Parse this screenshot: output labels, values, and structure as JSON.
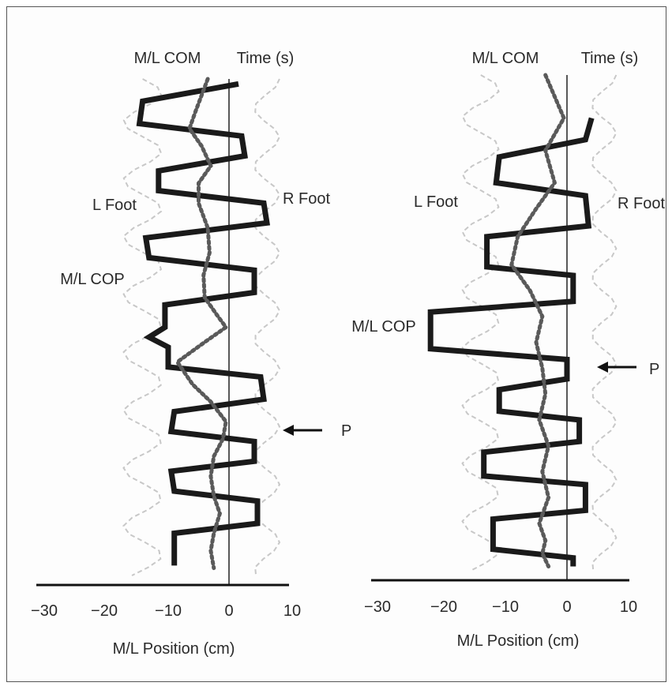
{
  "chart_data": [
    {
      "type": "line",
      "panel": "left",
      "title": "",
      "xlabel": "M/L Position (cm)",
      "ylabel": "Time (s)",
      "xlim": [
        -30,
        12
      ],
      "xticks": [
        "-30",
        "-20",
        "-10",
        "0",
        "10"
      ],
      "grid": false,
      "annotations": {
        "com": "M/L COM",
        "time": "Time (s)",
        "lfoot": "L Foot",
        "rfoot": "R Foot",
        "cop": "M/L COP",
        "p": "P"
      },
      "series": [
        {
          "name": "M/L COP",
          "style": "thick-solid",
          "x": [
            1.5,
            -14,
            -14.5,
            2,
            2.5,
            -11.5,
            -11.5,
            5.5,
            6,
            -13.5,
            -13,
            4,
            4,
            -10.5,
            -10.5,
            -13,
            -10,
            -10,
            5,
            5.5,
            -9,
            -9.5,
            4,
            4,
            -9.5,
            -9,
            4.5,
            4.5,
            -9,
            -9
          ],
          "t": [
            0.02,
            0.09,
            0.18,
            0.23,
            0.31,
            0.37,
            0.45,
            0.5,
            0.58,
            0.64,
            0.72,
            0.77,
            0.86,
            0.91,
            1.0,
            1.04,
            1.08,
            1.16,
            1.2,
            1.29,
            1.34,
            1.42,
            1.46,
            1.54,
            1.58,
            1.66,
            1.7,
            1.79,
            1.83,
            1.96
          ]
        },
        {
          "name": "M/L COM",
          "style": "dotted",
          "x": [
            -3.5,
            -5.5,
            -6.5,
            -4.5,
            -3,
            -5,
            -5,
            -3.5,
            -3.2,
            -4.2,
            -4,
            -2,
            -0.5,
            -4,
            -8.5,
            -6,
            -3,
            -0.5,
            -1,
            -2.5,
            -3,
            -2.5,
            -1.5,
            -2.5,
            -3,
            -2.5
          ],
          "t": [
            0.0,
            0.13,
            0.2,
            0.27,
            0.35,
            0.42,
            0.5,
            0.6,
            0.7,
            0.79,
            0.88,
            0.95,
            1.0,
            1.06,
            1.14,
            1.23,
            1.3,
            1.38,
            1.45,
            1.52,
            1.6,
            1.68,
            1.75,
            1.83,
            1.9,
            1.97
          ]
        }
      ]
    },
    {
      "type": "line",
      "panel": "right",
      "title": "",
      "xlabel": "M/L Position (cm)",
      "ylabel": "Time (s)",
      "xlim": [
        -30,
        10
      ],
      "xticks": [
        "-30",
        "-20",
        "-10",
        "0",
        "10"
      ],
      "grid": false,
      "annotations": {
        "com": "M/L COM",
        "time": "Time (s)",
        "lfoot": "L Foot",
        "rfoot": "R Foot",
        "cop": "M/L COP",
        "p": "P"
      },
      "series": [
        {
          "name": "M/L COP",
          "style": "thick-solid",
          "x": [
            4,
            3,
            -11,
            -11.5,
            3,
            3.5,
            -13,
            -13,
            1,
            1,
            -22,
            -22,
            0,
            0,
            -11,
            -11,
            2,
            2,
            -13.5,
            -13.5,
            3,
            3,
            -12,
            -12,
            1,
            1
          ],
          "t": [
            0.2,
            0.3,
            0.38,
            0.5,
            0.56,
            0.7,
            0.75,
            0.89,
            0.93,
            1.05,
            1.1,
            1.27,
            1.32,
            1.41,
            1.46,
            1.56,
            1.6,
            1.7,
            1.75,
            1.86,
            1.9,
            2.02,
            2.06,
            2.2,
            2.24,
            2.28
          ]
        },
        {
          "name": "M/L COM",
          "style": "dotted",
          "x": [
            -3.5,
            -2,
            -0.5,
            -3.5,
            -2,
            -5,
            -8,
            -9,
            -6,
            -4,
            -5,
            -4,
            -3.5,
            -4.5,
            -3,
            -4,
            -3,
            -4.5,
            -3.5,
            -4,
            -3
          ],
          "t": [
            0.0,
            0.1,
            0.2,
            0.35,
            0.5,
            0.62,
            0.75,
            0.88,
            1.0,
            1.12,
            1.24,
            1.36,
            1.48,
            1.6,
            1.72,
            1.84,
            1.96,
            2.08,
            2.16,
            2.22,
            2.28
          ]
        }
      ]
    }
  ]
}
